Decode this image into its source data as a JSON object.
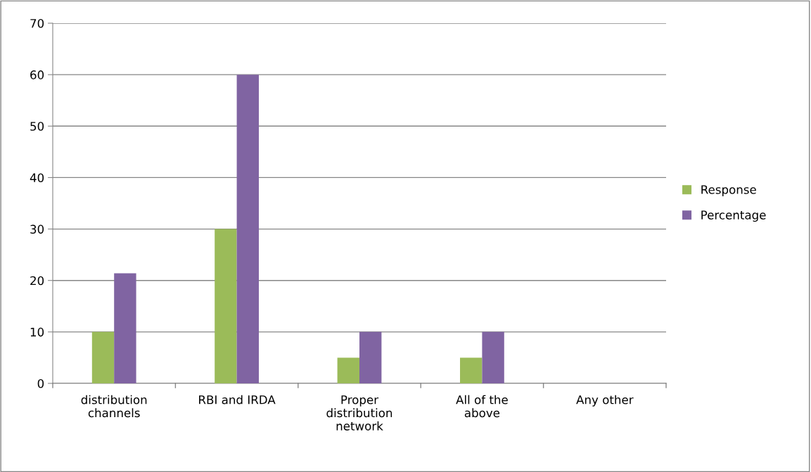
{
  "chart_data": {
    "type": "bar",
    "categories": [
      "distribution channels",
      "RBI and IRDA",
      "Proper distribution network",
      "All of the above",
      "Any other"
    ],
    "series": [
      {
        "name": "Response",
        "color": "#9bbb59",
        "values": [
          10,
          30,
          5,
          5,
          0
        ]
      },
      {
        "name": "Percentage",
        "color": "#8064a2",
        "values": [
          21.4,
          60,
          10,
          10,
          0
        ]
      }
    ],
    "ylim": [
      0,
      70
    ],
    "yticks": [
      0,
      10,
      20,
      30,
      40,
      50,
      60,
      70
    ],
    "grid": "y",
    "legend": "right"
  }
}
